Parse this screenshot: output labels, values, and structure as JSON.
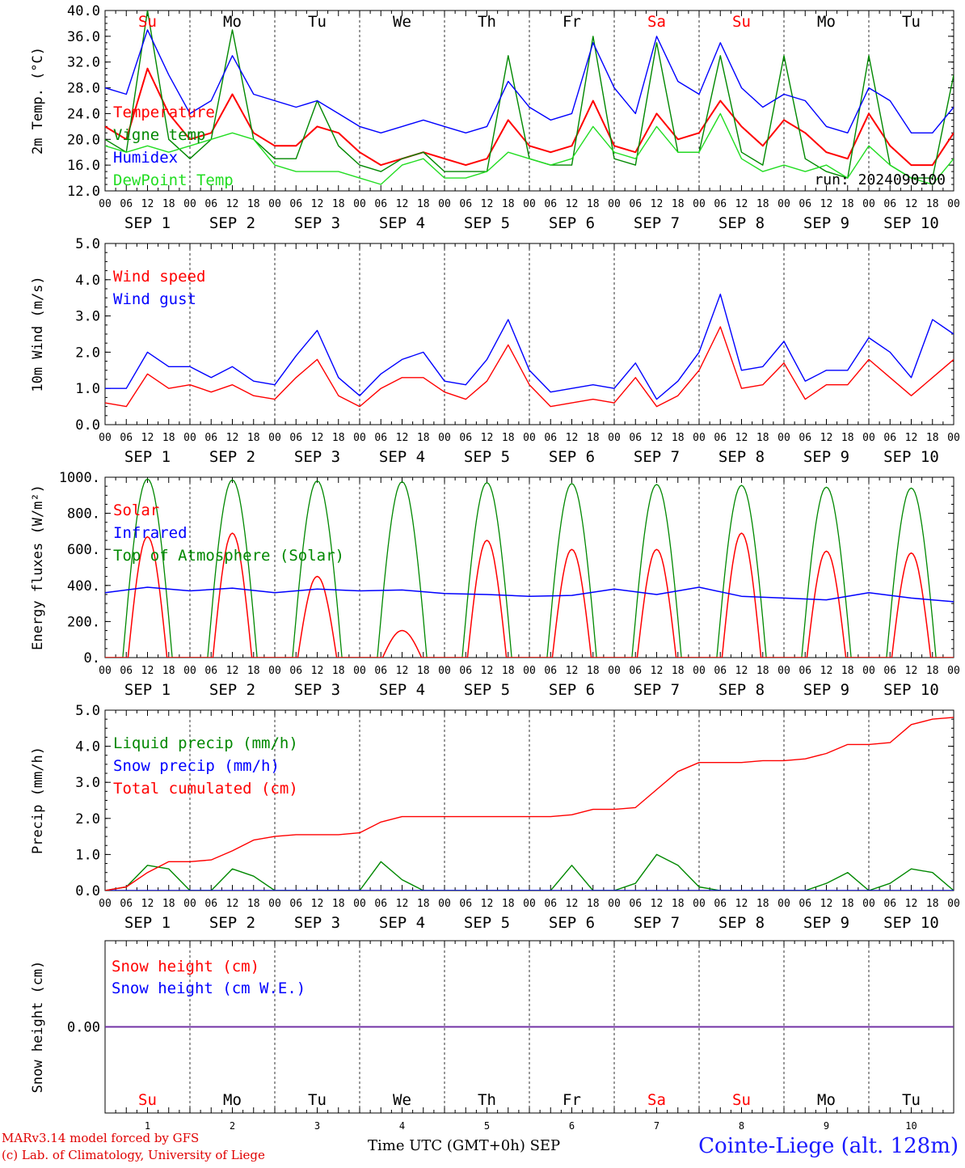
{
  "footer": {
    "credit_line1": "MARv3.14 model forced by GFS",
    "credit_line2": "(c) Lab. of Climatology, University of Liege",
    "time_axis_label": "Time UTC (GMT+0h) SEP",
    "station": "Cointe-Liege (alt. 128m)"
  },
  "colors": {
    "red": "#ff0000",
    "green": "#008800",
    "blue": "#0000ff",
    "lightgreen": "#22dd22",
    "purple": "#7030a0",
    "weekend": "#ff0000",
    "weekday": "#000000"
  },
  "days": [
    "Su",
    "Mo",
    "Tu",
    "We",
    "Th",
    "Fr",
    "Sa",
    "Su",
    "Mo",
    "Tu"
  ],
  "weekend_flags": [
    true,
    false,
    false,
    false,
    false,
    false,
    true,
    true,
    false,
    false
  ],
  "date_labels": [
    "SEP  1",
    "SEP  2",
    "SEP  3",
    "SEP  4",
    "SEP  5",
    "SEP  6",
    "SEP  7",
    "SEP  8",
    "SEP  9",
    "SEP 10"
  ],
  "day_numbers": [
    "1",
    "2",
    "3",
    "4",
    "5",
    "6",
    "7",
    "8",
    "9",
    "10"
  ],
  "hour_ticks": [
    "00",
    "06",
    "12",
    "18"
  ],
  "hour_tick_end": "00",
  "chart_data": [
    {
      "type": "line",
      "ylabel": "2m Temp. (°C)",
      "ylim": [
        12,
        40
      ],
      "ytick_values": [
        12,
        16,
        20,
        24,
        28,
        32,
        36,
        40
      ],
      "yticks": [
        "12.0",
        "16.0",
        "20.0",
        "24.0",
        "28.0",
        "32.0",
        "36.0",
        "40.0"
      ],
      "show_days": true,
      "annotation": "run: 2024090100",
      "xlim": [
        0,
        240
      ],
      "series": [
        {
          "name": "Temperature",
          "color": "#ff0000",
          "x": [
            0,
            6,
            12,
            18,
            24,
            30,
            36,
            42,
            48,
            54,
            60,
            66,
            72,
            78,
            84,
            90,
            96,
            102,
            108,
            114,
            120,
            126,
            132,
            138,
            144,
            150,
            156,
            162,
            168,
            174,
            180,
            186,
            192,
            198,
            204,
            210,
            216,
            222,
            228,
            234,
            240
          ],
          "values": [
            22,
            20,
            31,
            24,
            20,
            21,
            27,
            21,
            19,
            19,
            22,
            21,
            18,
            16,
            17,
            18,
            17,
            16,
            17,
            23,
            19,
            18,
            19,
            26,
            19,
            18,
            24,
            20,
            21,
            26,
            22,
            19,
            23,
            21,
            18,
            17,
            24,
            19,
            16,
            16,
            21
          ]
        },
        {
          "name": "Vigne temp",
          "color": "#008800",
          "x": [
            0,
            6,
            12,
            18,
            24,
            30,
            36,
            42,
            48,
            54,
            60,
            66,
            72,
            78,
            84,
            90,
            96,
            102,
            108,
            114,
            120,
            126,
            132,
            138,
            144,
            150,
            156,
            162,
            168,
            174,
            180,
            186,
            192,
            198,
            204,
            210,
            216,
            222,
            228,
            234,
            240
          ],
          "values": [
            20,
            18,
            40,
            20,
            17,
            20,
            37,
            20,
            17,
            17,
            26,
            19,
            16,
            15,
            17,
            18,
            15,
            15,
            15,
            33,
            17,
            16,
            16,
            36,
            17,
            16,
            35,
            18,
            18,
            33,
            18,
            16,
            33,
            17,
            15,
            14,
            33,
            16,
            14,
            14,
            30
          ]
        },
        {
          "name": "Humidex",
          "color": "#0000ff",
          "x": [
            0,
            6,
            12,
            18,
            24,
            30,
            36,
            42,
            48,
            54,
            60,
            66,
            72,
            78,
            84,
            90,
            96,
            102,
            108,
            114,
            120,
            126,
            132,
            138,
            144,
            150,
            156,
            162,
            168,
            174,
            180,
            186,
            192,
            198,
            204,
            210,
            216,
            222,
            228,
            234,
            240
          ],
          "values": [
            28,
            27,
            37,
            30,
            24,
            26,
            33,
            27,
            26,
            25,
            26,
            24,
            22,
            21,
            22,
            23,
            22,
            21,
            22,
            29,
            25,
            23,
            24,
            35,
            28,
            24,
            36,
            29,
            27,
            35,
            28,
            25,
            27,
            26,
            22,
            21,
            28,
            26,
            21,
            21,
            25
          ]
        },
        {
          "name": "DewPoint Temp",
          "color": "#22dd22",
          "x": [
            0,
            6,
            12,
            18,
            24,
            30,
            36,
            42,
            48,
            54,
            60,
            66,
            72,
            78,
            84,
            90,
            96,
            102,
            108,
            114,
            120,
            126,
            132,
            138,
            144,
            150,
            156,
            162,
            168,
            174,
            180,
            186,
            192,
            198,
            204,
            210,
            216,
            222,
            228,
            234,
            240
          ],
          "values": [
            19,
            18,
            19,
            18,
            19,
            20,
            21,
            20,
            16,
            15,
            15,
            15,
            14,
            13,
            16,
            17,
            14,
            14,
            15,
            18,
            17,
            16,
            17,
            22,
            18,
            17,
            22,
            18,
            18,
            24,
            17,
            15,
            16,
            15,
            16,
            14,
            19,
            16,
            14,
            13,
            17
          ]
        }
      ]
    },
    {
      "type": "line",
      "ylabel": "10m Wind (m/s)",
      "ylim": [
        0,
        5
      ],
      "ytick_values": [
        0,
        1,
        2,
        3,
        4,
        5
      ],
      "yticks": [
        "0.0",
        "1.0",
        "2.0",
        "3.0",
        "4.0",
        "5.0"
      ],
      "xlim": [
        0,
        240
      ],
      "series": [
        {
          "name": "Wind speed",
          "color": "#ff0000",
          "x": [
            0,
            6,
            12,
            18,
            24,
            30,
            36,
            42,
            48,
            54,
            60,
            66,
            72,
            78,
            84,
            90,
            96,
            102,
            108,
            114,
            120,
            126,
            132,
            138,
            144,
            150,
            156,
            162,
            168,
            174,
            180,
            186,
            192,
            198,
            204,
            210,
            216,
            222,
            228,
            234,
            240
          ],
          "values": [
            0.6,
            0.5,
            1.4,
            1.0,
            1.1,
            0.9,
            1.1,
            0.8,
            0.7,
            1.3,
            1.8,
            0.8,
            0.5,
            1.0,
            1.3,
            1.3,
            0.9,
            0.7,
            1.2,
            2.2,
            1.1,
            0.5,
            0.6,
            0.7,
            0.6,
            1.3,
            0.5,
            0.8,
            1.5,
            2.7,
            1.0,
            1.1,
            1.7,
            0.7,
            1.1,
            1.1,
            1.8,
            1.3,
            0.8,
            1.3,
            1.8
          ]
        },
        {
          "name": "Wind gust",
          "color": "#0000ff",
          "x": [
            0,
            6,
            12,
            18,
            24,
            30,
            36,
            42,
            48,
            54,
            60,
            66,
            72,
            78,
            84,
            90,
            96,
            102,
            108,
            114,
            120,
            126,
            132,
            138,
            144,
            150,
            156,
            162,
            168,
            174,
            180,
            186,
            192,
            198,
            204,
            210,
            216,
            222,
            228,
            234,
            240
          ],
          "values": [
            1.0,
            1.0,
            2.0,
            1.6,
            1.6,
            1.3,
            1.6,
            1.2,
            1.1,
            1.9,
            2.6,
            1.3,
            0.8,
            1.4,
            1.8,
            2.0,
            1.2,
            1.1,
            1.8,
            2.9,
            1.5,
            0.9,
            1.0,
            1.1,
            1.0,
            1.7,
            0.7,
            1.2,
            2.0,
            3.6,
            1.5,
            1.6,
            2.3,
            1.2,
            1.5,
            1.5,
            2.4,
            2.0,
            1.3,
            2.9,
            2.5
          ]
        }
      ]
    },
    {
      "type": "line",
      "ylabel": "Energy fluxes (W/m²)",
      "ylim": [
        0,
        1000
      ],
      "ytick_values": [
        0,
        200,
        400,
        600,
        800,
        1000
      ],
      "yticks": [
        "0.",
        "200.",
        "400.",
        "600.",
        "800.",
        "1000."
      ],
      "xlim": [
        0,
        240
      ],
      "series": [
        {
          "name": "Solar",
          "color": "#ff0000",
          "peaks": [
            670,
            690,
            450,
            150,
            650,
            600,
            600,
            690,
            590,
            580
          ]
        },
        {
          "name": "Infrared",
          "color": "#0000ff",
          "x": [
            0,
            12,
            24,
            36,
            48,
            60,
            72,
            84,
            96,
            108,
            120,
            132,
            144,
            156,
            168,
            180,
            192,
            204,
            216,
            228,
            240
          ],
          "values": [
            360,
            390,
            370,
            385,
            360,
            380,
            370,
            375,
            355,
            350,
            340,
            345,
            380,
            350,
            390,
            340,
            330,
            320,
            360,
            330,
            310
          ]
        },
        {
          "name": "Top of Atmosphere (Solar)",
          "color": "#008800",
          "peaks": [
            990,
            985,
            980,
            975,
            970,
            965,
            960,
            955,
            945,
            940
          ]
        }
      ]
    },
    {
      "type": "line",
      "ylabel": "Precip (mm/h)",
      "ylim": [
        0,
        5
      ],
      "ytick_values": [
        0,
        1,
        2,
        3,
        4,
        5
      ],
      "yticks": [
        "0.0",
        "1.0",
        "2.0",
        "3.0",
        "4.0",
        "5.0"
      ],
      "xlim": [
        0,
        240
      ],
      "series": [
        {
          "name": "Liquid precip (mm/h)",
          "color": "#008800",
          "x": [
            0,
            6,
            12,
            18,
            24,
            30,
            36,
            42,
            48,
            54,
            60,
            66,
            72,
            78,
            84,
            90,
            96,
            102,
            108,
            114,
            120,
            126,
            132,
            138,
            144,
            150,
            156,
            162,
            168,
            174,
            180,
            186,
            192,
            198,
            204,
            210,
            216,
            222,
            228,
            234,
            240
          ],
          "values": [
            0,
            0.1,
            0.7,
            0.6,
            0,
            0,
            0.6,
            0.4,
            0,
            0,
            0,
            0,
            0,
            0.8,
            0.3,
            0,
            0,
            0,
            0,
            0,
            0,
            0,
            0.7,
            0,
            0,
            0.2,
            1.0,
            0.7,
            0.1,
            0,
            0,
            0,
            0,
            0,
            0.2,
            0.5,
            0,
            0.2,
            0.6,
            0.5,
            0
          ]
        },
        {
          "name": "Snow precip (mm/h)",
          "color": "#0000ff",
          "x": [
            0,
            240
          ],
          "values": [
            0,
            0
          ]
        },
        {
          "name": "Total cumulated (cm)",
          "color": "#ff0000",
          "x": [
            0,
            6,
            12,
            18,
            24,
            30,
            36,
            42,
            48,
            54,
            60,
            66,
            72,
            78,
            84,
            90,
            96,
            102,
            108,
            114,
            120,
            126,
            132,
            138,
            144,
            150,
            156,
            162,
            168,
            174,
            180,
            186,
            192,
            198,
            204,
            210,
            216,
            222,
            228,
            234,
            240
          ],
          "values": [
            0,
            0.1,
            0.5,
            0.8,
            0.8,
            0.85,
            1.1,
            1.4,
            1.5,
            1.55,
            1.55,
            1.55,
            1.6,
            1.9,
            2.05,
            2.05,
            2.05,
            2.05,
            2.05,
            2.05,
            2.05,
            2.05,
            2.1,
            2.25,
            2.25,
            2.3,
            2.8,
            3.3,
            3.55,
            3.55,
            3.55,
            3.6,
            3.6,
            3.65,
            3.8,
            4.05,
            4.05,
            4.1,
            4.6,
            4.75,
            4.8
          ]
        }
      ]
    },
    {
      "type": "line",
      "ylabel": "Snow height (cm)",
      "ylim": [
        -1,
        1
      ],
      "ytick_values": [
        0
      ],
      "yticks": [
        "0.00"
      ],
      "xlim": [
        0,
        240
      ],
      "bottom_days": true,
      "series": [
        {
          "name": "Snow height (cm)",
          "color": "#ff0000",
          "x": [
            0,
            240
          ],
          "values": [
            0,
            0
          ]
        },
        {
          "name": "Snow height (cm W.E.)",
          "color": "#0000ff",
          "x": [
            0,
            240
          ],
          "values": [
            0,
            0
          ]
        }
      ]
    }
  ]
}
